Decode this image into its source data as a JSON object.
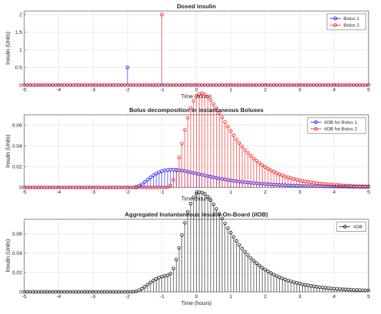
{
  "chart_data": [
    {
      "type": "stem",
      "title": "Dosed insulin",
      "xlabel": "Time (hours)",
      "ylabel": "Insulin (Units)",
      "xlim": [
        -5,
        5
      ],
      "ylim": [
        0,
        2.1
      ],
      "xticks": [
        -5,
        -4,
        -3,
        -2,
        -1,
        0,
        1,
        2,
        3,
        4,
        5
      ],
      "yticks": [
        0,
        0.5,
        1,
        1.5,
        2
      ],
      "ytick_labels": [
        "0",
        "0.5",
        "1",
        "1.5",
        "2"
      ],
      "grid": true,
      "legend_position": "top-right",
      "sampling": {
        "start": -5,
        "end": 5,
        "step": 0.0833
      },
      "series": [
        {
          "name": "Bolus 1",
          "color": "#0000ff",
          "impulses": [
            {
              "x": -2,
              "y": 0.5
            }
          ]
        },
        {
          "name": "Bolus 2",
          "color": "#ff0000",
          "impulses": [
            {
              "x": -1,
              "y": 2.0
            }
          ]
        }
      ]
    },
    {
      "type": "stem",
      "title": "Bolus decomposition in instantaneous Boluses",
      "xlabel": "Time (hours)",
      "ylabel": "Insulin (Units)",
      "xlim": [
        -5,
        5
      ],
      "ylim": [
        0,
        0.07
      ],
      "xticks": [
        -5,
        -4,
        -3,
        -2,
        -1,
        0,
        1,
        2,
        3,
        4,
        5
      ],
      "yticks": [
        0,
        0.02,
        0.04,
        0.06
      ],
      "ytick_labels": [
        "0",
        "0.02",
        "0.04",
        "0.06"
      ],
      "grid": true,
      "legend_position": "top-right",
      "sampling": {
        "start": -5,
        "end": 5,
        "step": 0.0833
      },
      "series": [
        {
          "name": "iIOB for Bolus 1",
          "color": "#0000ff",
          "onset": -2,
          "amount": 0.5,
          "peak": 1.9,
          "width": 0.62
        },
        {
          "name": "iIOB for Bolus 2",
          "color": "#ff0000",
          "onset": -1,
          "amount": 2.0,
          "peak": 1.55,
          "width": 0.55
        }
      ]
    },
    {
      "type": "stem",
      "title": "Aggregated Instantaneous Insulin-On-Board (iIOB)",
      "xlabel": "Time (hours)",
      "ylabel": "Insulin (Units)",
      "xlim": [
        -5,
        5
      ],
      "ylim": [
        0,
        0.075
      ],
      "xticks": [
        -5,
        -4,
        -3,
        -2,
        -1,
        0,
        1,
        2,
        3,
        4,
        5
      ],
      "yticks": [
        0,
        0.02,
        0.04,
        0.06
      ],
      "ytick_labels": [
        "0",
        "0.02",
        "0.04",
        "0.06"
      ],
      "grid": true,
      "legend_position": "top-right",
      "sampling": {
        "start": -5,
        "end": 5,
        "step": 0.0833
      },
      "series": [
        {
          "name": "iIOB",
          "color": "#000000",
          "sum_of": [
            0,
            1
          ]
        }
      ]
    }
  ]
}
